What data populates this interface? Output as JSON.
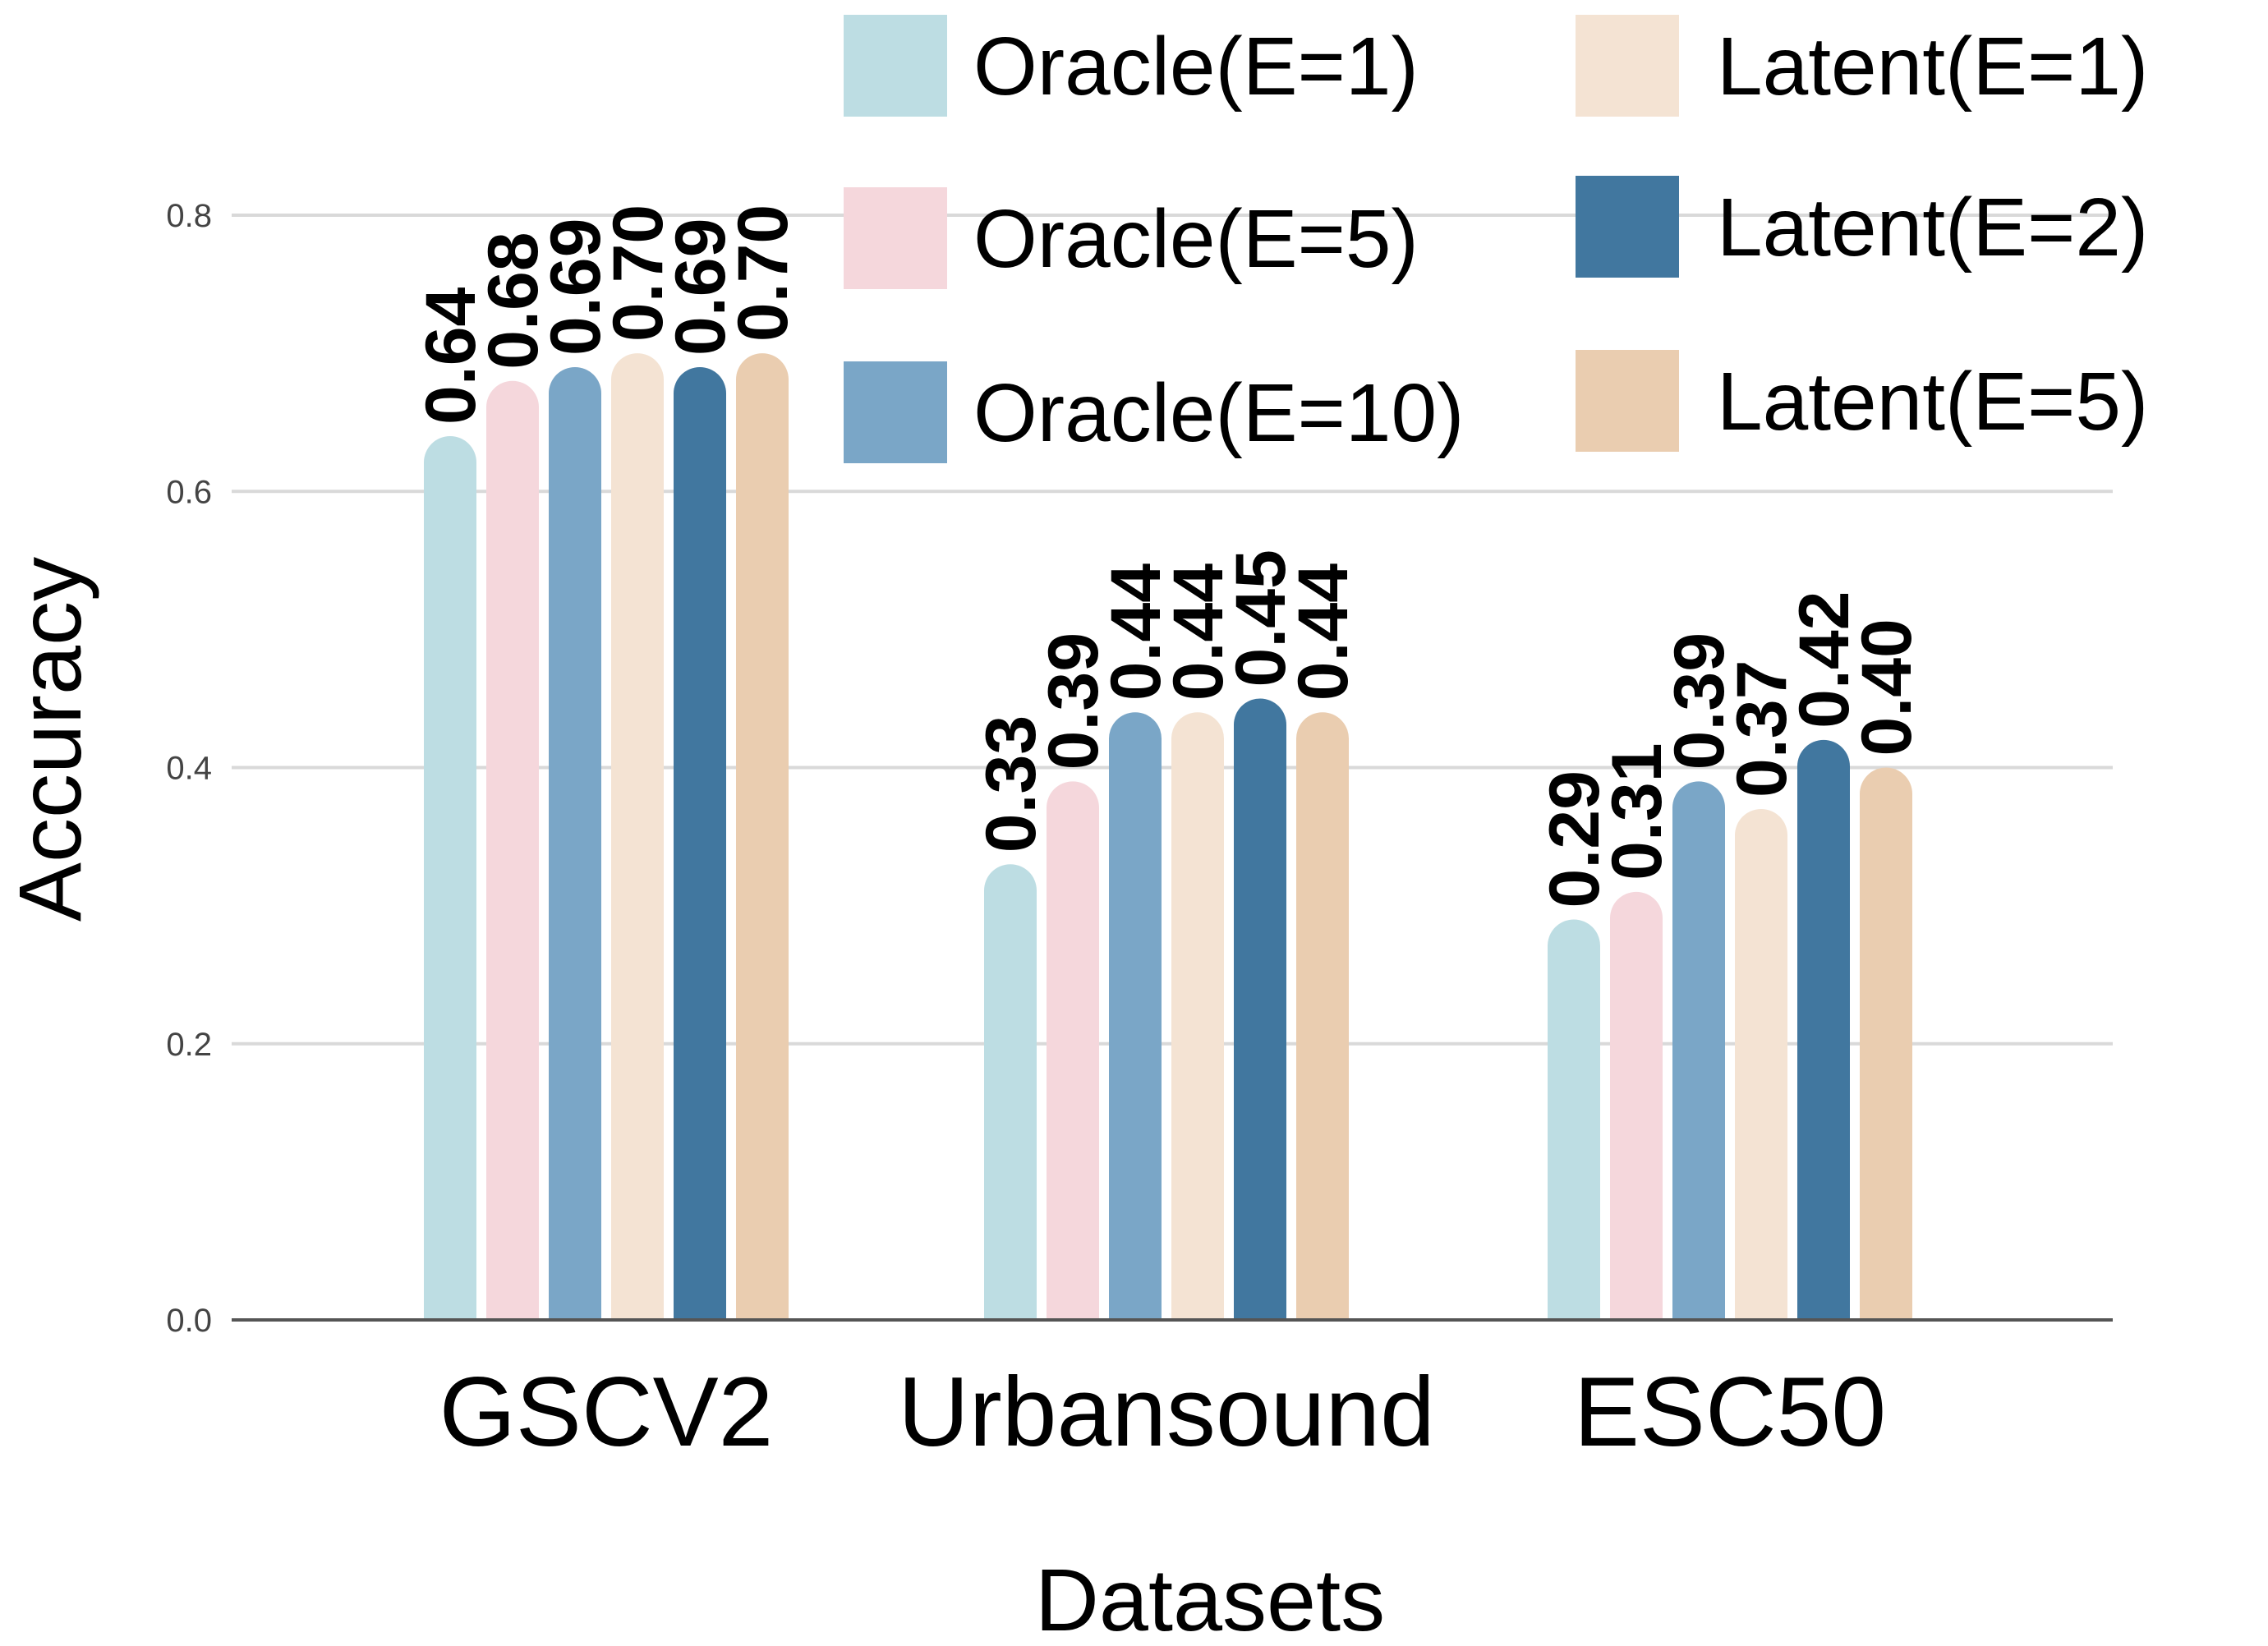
{
  "chart_data": {
    "type": "bar",
    "title": "",
    "xlabel": "Datasets",
    "ylabel": "Accuracy",
    "ylim": [
      0,
      0.8
    ],
    "yticks": [
      "0.0",
      "0.2",
      "0.4",
      "0.6",
      "0.8"
    ],
    "ytick_values": [
      0,
      0.2,
      0.4,
      0.6,
      0.8
    ],
    "grid": true,
    "legend_position": "top-right",
    "categories": [
      "GSCV2",
      "Urbansound",
      "ESC50"
    ],
    "series": [
      {
        "name": "Oracle(E=1)",
        "color": "#bddde3",
        "values": [
          0.64,
          0.33,
          0.29
        ],
        "labels": [
          "0.64",
          "0.33",
          "0.29"
        ]
      },
      {
        "name": "Oracle(E=5)",
        "color": "#f5d7dc",
        "values": [
          0.68,
          0.39,
          0.31
        ],
        "labels": [
          "0.68",
          "0.39",
          "0.31"
        ]
      },
      {
        "name": "Oracle(E=10)",
        "color": "#7aa6c7",
        "values": [
          0.69,
          0.44,
          0.39
        ],
        "labels": [
          "0.69",
          "0.44",
          "0.39"
        ]
      },
      {
        "name": "Latent(E=1)",
        "color": "#f4e3d3",
        "values": [
          0.7,
          0.44,
          0.37
        ],
        "labels": [
          "0.70",
          "0.44",
          "0.37"
        ]
      },
      {
        "name": "Latent(E=2)",
        "color": "#41779f",
        "values": [
          0.69,
          0.45,
          0.42
        ],
        "labels": [
          "0.69",
          "0.45",
          "0.42"
        ]
      },
      {
        "name": "Latent(E=5)",
        "color": "#eacdb0",
        "values": [
          0.7,
          0.44,
          0.4
        ],
        "labels": [
          "0.70",
          "0.44",
          "0.40"
        ]
      }
    ]
  }
}
